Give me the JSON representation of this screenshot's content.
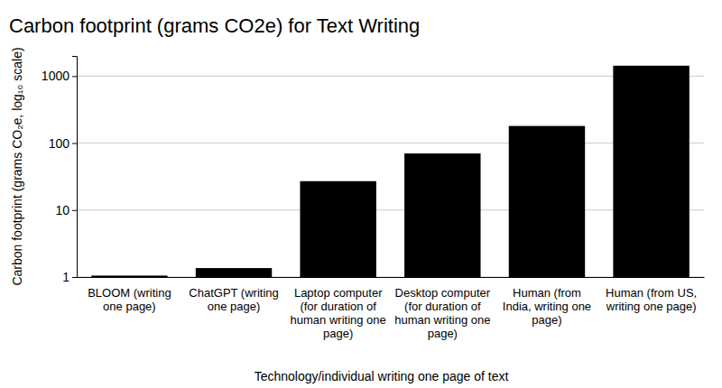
{
  "chart_data": {
    "type": "bar",
    "title": "Carbon footprint (grams CO2e) for Text Writing",
    "y_label": "Carbon footprint (grams CO₂e, log₁₀ scale)",
    "x_label": "Technology/individual writing one page of text",
    "categories": [
      "BLOOM (writing one page)",
      "ChatGPT (writing one page)",
      "Laptop computer (for duration of human writing one page)",
      "Desktop computer (for duration of human writing one page)",
      "Human (from India, writing one page)",
      "Human (from US, writing one page)"
    ],
    "values": [
      1.05,
      1.36,
      27,
      70,
      180,
      1430
    ],
    "color": "#000000",
    "log": "y",
    "ylim": [
      1,
      2000
    ],
    "yticks": [
      1,
      10,
      100,
      1000
    ],
    "grid": true
  }
}
